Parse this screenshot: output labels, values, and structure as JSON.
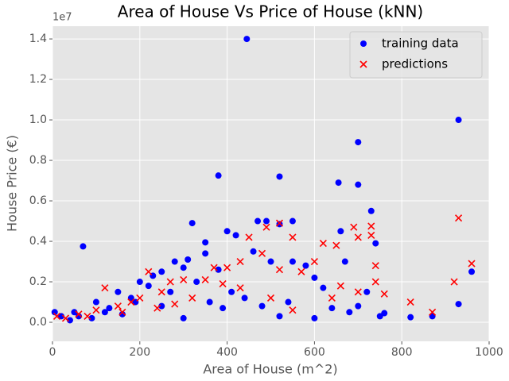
{
  "chart_data": {
    "type": "scatter",
    "title": "Area of House Vs Price of House (kNN)",
    "x_label": "Area of House (m^2)",
    "y_label": "House Price (€)",
    "y_offset_label": "1e7",
    "xlim": [
      0,
      1000
    ],
    "ylim": [
      -940000,
      14630000
    ],
    "xticks": [
      0,
      200,
      400,
      600,
      800,
      1000
    ],
    "yticks": [
      {
        "value": 0,
        "label": "0.0"
      },
      {
        "value": 2000000,
        "label": "0.2"
      },
      {
        "value": 4000000,
        "label": "0.4"
      },
      {
        "value": 6000000,
        "label": "0.6"
      },
      {
        "value": 8000000,
        "label": "0.8"
      },
      {
        "value": 10000000,
        "label": "1.0"
      },
      {
        "value": 12000000,
        "label": "1.2"
      },
      {
        "value": 14000000,
        "label": "1.4"
      }
    ],
    "grid": true,
    "legend": "upper right",
    "series": [
      {
        "name": "training data",
        "color": "#0000ff",
        "marker": "circle",
        "x": [
          445,
          930,
          700,
          380,
          520,
          655,
          700,
          730,
          320,
          470,
          490,
          550,
          520,
          70,
          350,
          420,
          400,
          660,
          740,
          960,
          930,
          870,
          820,
          760,
          750,
          700,
          640,
          600,
          580,
          550,
          500,
          460,
          300,
          250,
          200,
          150,
          100,
          50,
          20,
          5,
          130,
          180,
          220,
          270,
          330,
          360,
          410,
          480,
          520,
          600,
          680,
          720,
          300,
          250,
          160,
          90,
          40,
          350,
          380,
          280,
          310,
          230,
          190,
          120,
          60,
          440,
          390,
          540,
          620,
          670
        ],
        "values": [
          14000000,
          10000000,
          8900000,
          7250000,
          7200000,
          6900000,
          6800000,
          5500000,
          4900000,
          5000000,
          5000000,
          5000000,
          4850000,
          3750000,
          3950000,
          4300000,
          4500000,
          4500000,
          3900000,
          2500000,
          900000,
          300000,
          250000,
          450000,
          300000,
          800000,
          700000,
          2200000,
          2800000,
          3000000,
          3000000,
          3500000,
          2700000,
          2500000,
          2000000,
          1500000,
          1000000,
          500000,
          300000,
          500000,
          700000,
          1200000,
          1800000,
          1500000,
          2000000,
          1000000,
          1500000,
          800000,
          300000,
          200000,
          500000,
          1500000,
          200000,
          800000,
          400000,
          200000,
          100000,
          3400000,
          2600000,
          3000000,
          3100000,
          2300000,
          1000000,
          500000,
          300000,
          1200000,
          700000,
          1000000,
          1700000,
          3000000
        ]
      },
      {
        "name": "predictions",
        "color": "#ff0000",
        "marker": "x",
        "x": [
          930,
          490,
          520,
          690,
          730,
          700,
          730,
          650,
          620,
          550,
          450,
          430,
          740,
          960,
          920,
          820,
          870,
          760,
          740,
          700,
          660,
          600,
          570,
          520,
          480,
          400,
          370,
          350,
          300,
          270,
          250,
          200,
          120,
          150,
          100,
          60,
          30,
          220,
          180,
          320,
          280,
          240,
          160,
          80,
          430,
          500,
          550,
          640,
          10,
          390
        ],
        "values": [
          5150000,
          4700000,
          4900000,
          4700000,
          4750000,
          4200000,
          4300000,
          3800000,
          3900000,
          4200000,
          4200000,
          3000000,
          2800000,
          2900000,
          2000000,
          1000000,
          500000,
          1400000,
          2000000,
          1500000,
          1800000,
          3000000,
          2500000,
          2600000,
          3400000,
          2700000,
          2700000,
          2100000,
          2100000,
          2000000,
          1500000,
          1200000,
          1700000,
          800000,
          600000,
          400000,
          200000,
          2500000,
          1000000,
          1200000,
          900000,
          700000,
          500000,
          300000,
          1700000,
          1200000,
          600000,
          1200000,
          300000,
          1900000
        ]
      }
    ]
  }
}
